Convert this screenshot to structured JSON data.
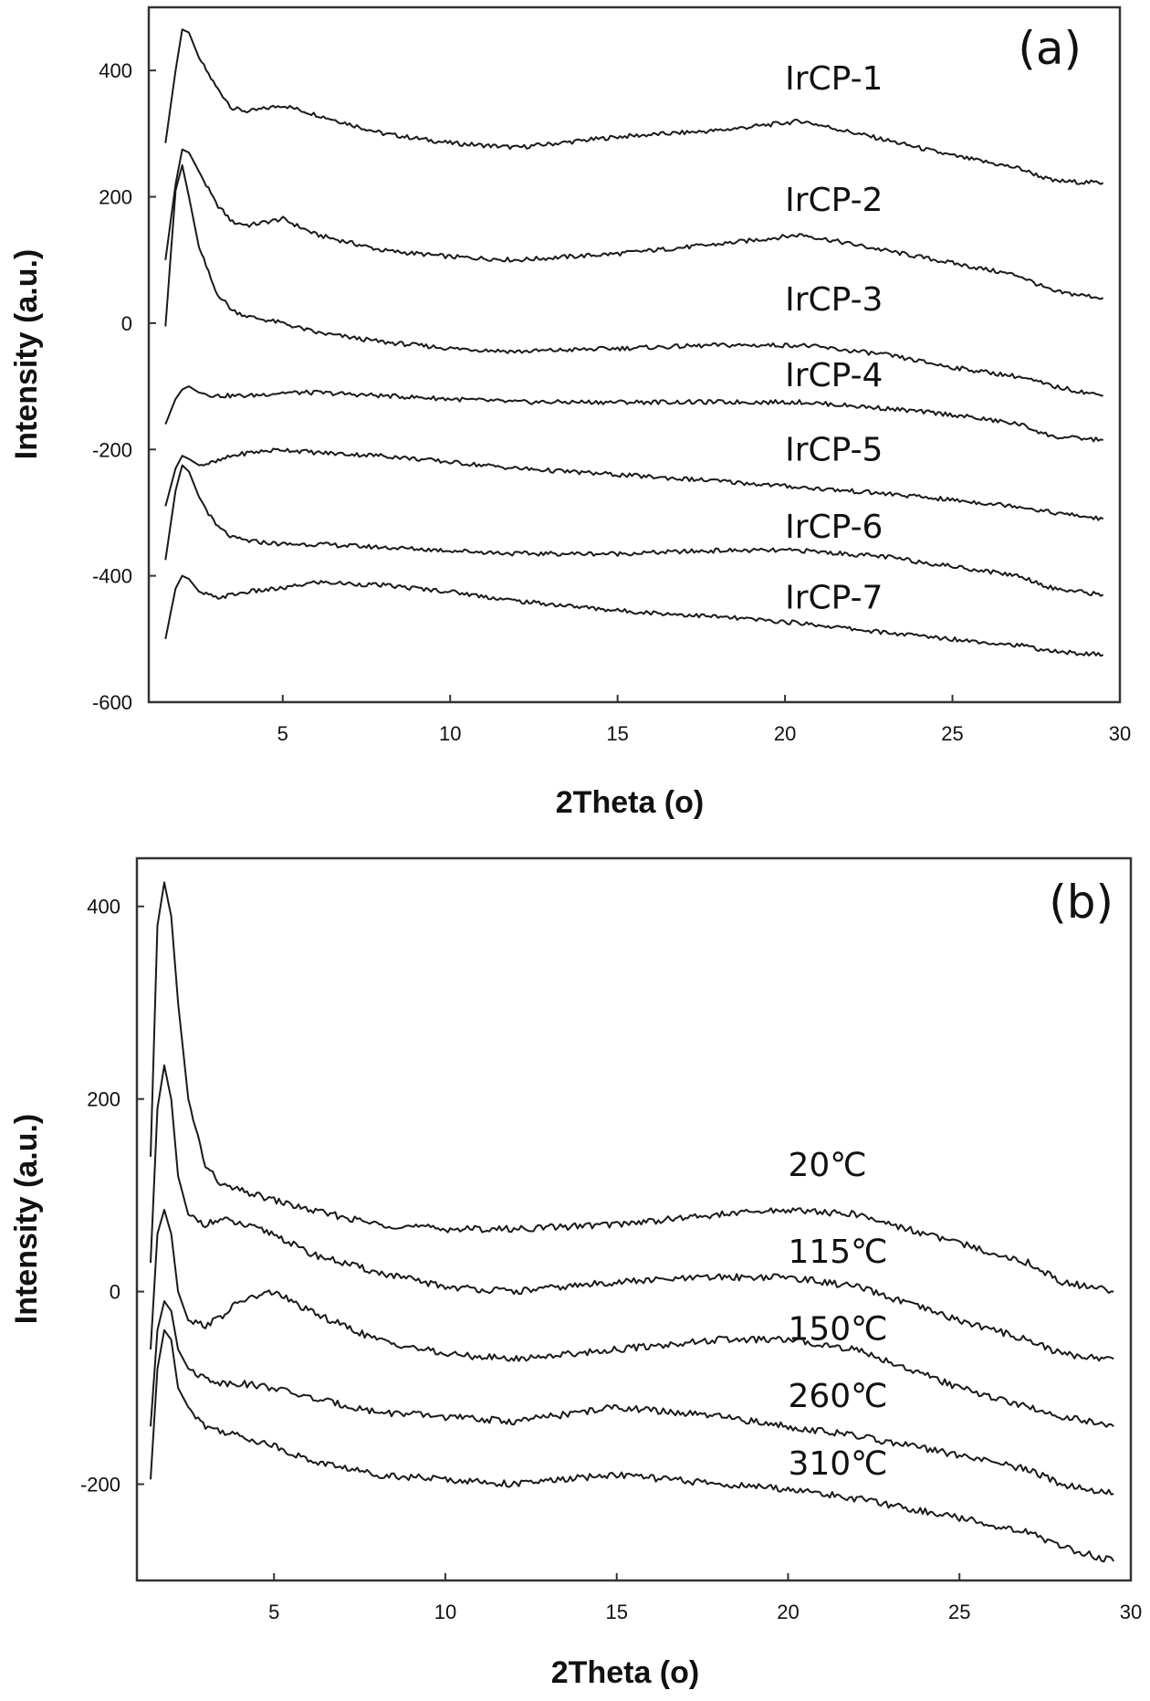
{
  "chart_data": [
    {
      "type": "line",
      "panel_label": "(a)",
      "xlabel": "2Theta (o)",
      "ylabel": "Intensity (a.u.)",
      "xlim": [
        1,
        30
      ],
      "ylim": [
        -600,
        500
      ],
      "xticks": [
        5,
        10,
        15,
        20,
        25,
        30
      ],
      "yticks": [
        -600,
        -400,
        -200,
        0,
        200,
        400
      ],
      "series": [
        {
          "name": "IrCP-1",
          "label_at": [
            20,
            370
          ],
          "x": [
            1.5,
            1.8,
            2.0,
            2.2,
            2.5,
            3.0,
            3.5,
            4.0,
            5.0,
            6.0,
            8.0,
            10.0,
            12.0,
            15.0,
            18.0,
            20.5,
            23.0,
            25.0,
            27.0,
            28.0,
            29.5
          ],
          "y": [
            285,
            400,
            465,
            460,
            420,
            375,
            340,
            335,
            345,
            330,
            300,
            285,
            278,
            295,
            305,
            320,
            290,
            265,
            245,
            225,
            222
          ]
        },
        {
          "name": "IrCP-2",
          "label_at": [
            20,
            178
          ],
          "x": [
            1.5,
            1.8,
            2.0,
            2.2,
            2.5,
            3.0,
            3.5,
            4.0,
            5.0,
            6.0,
            8.0,
            10.0,
            12.0,
            15.0,
            18.0,
            20.5,
            23.0,
            25.0,
            27.0,
            28.0,
            29.5
          ],
          "y": [
            100,
            220,
            275,
            270,
            240,
            190,
            160,
            155,
            165,
            140,
            115,
            105,
            100,
            110,
            125,
            140,
            115,
            95,
            75,
            50,
            40
          ]
        },
        {
          "name": "IrCP-3",
          "label_at": [
            20,
            20
          ],
          "x": [
            1.5,
            1.8,
            2.0,
            2.2,
            2.5,
            3.0,
            3.5,
            4.0,
            5.0,
            6.0,
            8.0,
            10.0,
            12.0,
            15.0,
            18.0,
            20.5,
            23.0,
            25.0,
            27.0,
            28.0,
            29.5
          ],
          "y": [
            -5,
            210,
            250,
            200,
            120,
            50,
            20,
            10,
            0,
            -15,
            -30,
            -40,
            -45,
            -40,
            -35,
            -35,
            -50,
            -70,
            -85,
            -100,
            -115
          ]
        },
        {
          "name": "IrCP-4",
          "label_at": [
            20,
            -100
          ],
          "x": [
            1.5,
            1.8,
            2.0,
            2.2,
            2.5,
            3.0,
            3.5,
            4.0,
            5.0,
            6.0,
            8.0,
            10.0,
            12.0,
            15.0,
            18.0,
            20.5,
            23.0,
            25.0,
            27.0,
            28.0,
            29.5
          ],
          "y": [
            -160,
            -120,
            -105,
            -100,
            -110,
            -115,
            -115,
            -115,
            -110,
            -110,
            -115,
            -120,
            -125,
            -125,
            -125,
            -125,
            -135,
            -145,
            -160,
            -180,
            -185
          ]
        },
        {
          "name": "IrCP-5",
          "label_at": [
            20,
            -218
          ],
          "x": [
            1.5,
            1.8,
            2.0,
            2.2,
            2.5,
            3.0,
            3.5,
            4.0,
            5.0,
            6.0,
            8.0,
            10.0,
            12.0,
            15.0,
            18.0,
            20.5,
            23.0,
            25.0,
            27.0,
            28.0,
            29.5
          ],
          "y": [
            -290,
            -230,
            -210,
            -215,
            -225,
            -220,
            -210,
            -205,
            -200,
            -205,
            -210,
            -220,
            -230,
            -240,
            -250,
            -260,
            -270,
            -280,
            -290,
            -300,
            -310
          ]
        },
        {
          "name": "IrCP-6",
          "label_at": [
            20,
            -340
          ],
          "x": [
            1.5,
            1.8,
            2.0,
            2.2,
            2.5,
            3.0,
            3.5,
            4.0,
            5.0,
            6.0,
            8.0,
            10.0,
            12.0,
            15.0,
            18.0,
            20.5,
            23.0,
            25.0,
            27.0,
            28.0,
            29.5
          ],
          "y": [
            -375,
            -265,
            -225,
            -235,
            -275,
            -320,
            -340,
            -345,
            -350,
            -350,
            -355,
            -360,
            -365,
            -365,
            -360,
            -360,
            -370,
            -385,
            -400,
            -420,
            -430
          ]
        },
        {
          "name": "IrCP-7",
          "label_at": [
            20,
            -452
          ],
          "x": [
            1.5,
            1.8,
            2.0,
            2.2,
            2.5,
            3.0,
            3.5,
            4.0,
            5.0,
            6.0,
            8.0,
            10.0,
            12.0,
            15.0,
            18.0,
            20.5,
            23.0,
            25.0,
            27.0,
            28.0,
            29.5
          ],
          "y": [
            -500,
            -420,
            -400,
            -405,
            -425,
            -435,
            -430,
            -425,
            -420,
            -410,
            -415,
            -425,
            -440,
            -455,
            -465,
            -475,
            -490,
            -500,
            -510,
            -520,
            -525
          ]
        }
      ]
    },
    {
      "type": "line",
      "panel_label": "(b)",
      "xlabel": "2Theta (o)",
      "ylabel": "Intensity (a.u.)",
      "xlim": [
        1,
        30
      ],
      "ylim": [
        -300,
        450
      ],
      "xticks": [
        5,
        10,
        15,
        20,
        25,
        30
      ],
      "yticks": [
        -200,
        0,
        200,
        400
      ],
      "series": [
        {
          "name": "20℃",
          "label_at": [
            20,
            120
          ],
          "x": [
            1.4,
            1.6,
            1.8,
            2.0,
            2.2,
            2.5,
            3.0,
            3.5,
            4.0,
            5.0,
            6.0,
            8.0,
            10.0,
            12.0,
            15.0,
            18.0,
            20.0,
            22.0,
            25.0,
            27.0,
            28.0,
            29.5
          ],
          "y": [
            140,
            380,
            425,
            390,
            300,
            200,
            130,
            110,
            105,
            95,
            85,
            70,
            65,
            65,
            70,
            80,
            85,
            80,
            50,
            30,
            10,
            0
          ]
        },
        {
          "name": "115℃",
          "label_at": [
            20,
            30
          ],
          "x": [
            1.4,
            1.6,
            1.8,
            2.0,
            2.2,
            2.5,
            3.0,
            3.5,
            4.0,
            5.0,
            6.0,
            8.0,
            10.0,
            12.0,
            15.0,
            18.0,
            20.0,
            22.0,
            25.0,
            27.0,
            28.0,
            29.5
          ],
          "y": [
            30,
            190,
            235,
            200,
            120,
            80,
            70,
            75,
            70,
            60,
            40,
            20,
            5,
            0,
            10,
            15,
            15,
            5,
            -30,
            -50,
            -65,
            -70
          ]
        },
        {
          "name": "150℃",
          "label_at": [
            20,
            -50
          ],
          "x": [
            1.4,
            1.6,
            1.8,
            2.0,
            2.2,
            2.5,
            3.0,
            3.5,
            4.0,
            5.0,
            6.0,
            8.0,
            10.0,
            12.0,
            15.0,
            18.0,
            20.0,
            22.0,
            25.0,
            27.0,
            28.0,
            29.5
          ],
          "y": [
            -60,
            60,
            85,
            60,
            0,
            -30,
            -35,
            -25,
            -10,
            0,
            -20,
            -50,
            -65,
            -70,
            -60,
            -50,
            -50,
            -60,
            -100,
            -120,
            -130,
            -140
          ]
        },
        {
          "name": "260℃",
          "label_at": [
            20,
            -120
          ],
          "x": [
            1.4,
            1.6,
            1.8,
            2.0,
            2.2,
            2.5,
            3.0,
            3.5,
            4.0,
            5.0,
            6.0,
            8.0,
            10.0,
            12.0,
            15.0,
            18.0,
            20.0,
            22.0,
            25.0,
            27.0,
            28.0,
            29.5
          ],
          "y": [
            -140,
            -40,
            -10,
            -20,
            -60,
            -80,
            -90,
            -95,
            -95,
            -100,
            -110,
            -125,
            -130,
            -135,
            -120,
            -130,
            -140,
            -150,
            -170,
            -185,
            -200,
            -210
          ]
        },
        {
          "name": "310℃",
          "label_at": [
            20,
            -190
          ],
          "x": [
            1.4,
            1.6,
            1.8,
            2.0,
            2.2,
            2.5,
            3.0,
            3.5,
            4.0,
            5.0,
            6.0,
            8.0,
            10.0,
            12.0,
            15.0,
            18.0,
            20.0,
            22.0,
            25.0,
            27.0,
            28.0,
            29.5
          ],
          "y": [
            -195,
            -80,
            -40,
            -50,
            -100,
            -120,
            -140,
            -145,
            -150,
            -160,
            -175,
            -190,
            -195,
            -200,
            -190,
            -200,
            -205,
            -215,
            -235,
            -250,
            -265,
            -280
          ]
        }
      ]
    }
  ]
}
